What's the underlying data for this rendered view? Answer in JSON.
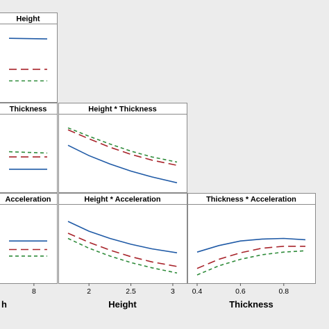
{
  "chart_data": [
    {
      "type": "line",
      "title": "Height",
      "row": 0,
      "col": 0,
      "x": [
        6.5,
        8.8
      ],
      "ylim": [
        0,
        1
      ],
      "series": [
        {
          "color": "#1f5aa6",
          "dash": "solid",
          "values": [
            0.88,
            0.87
          ]
        },
        {
          "color": "#a8232a",
          "dash": "long",
          "values": [
            0.4,
            0.4
          ]
        },
        {
          "color": "#2e8b3a",
          "dash": "short",
          "values": [
            0.22,
            0.22
          ]
        }
      ]
    },
    {
      "type": "line",
      "title": "Thickness",
      "row": 1,
      "col": 0,
      "x": [
        6.5,
        8.8
      ],
      "ylim": [
        0,
        1
      ],
      "series": [
        {
          "color": "#1f5aa6",
          "dash": "solid",
          "values": [
            0.25,
            0.25
          ]
        },
        {
          "color": "#a8232a",
          "dash": "long",
          "values": [
            0.44,
            0.44
          ]
        },
        {
          "color": "#2e8b3a",
          "dash": "short",
          "values": [
            0.52,
            0.5
          ]
        }
      ]
    },
    {
      "type": "line",
      "title": "Height * Thickness",
      "row": 1,
      "col": 1,
      "x": [
        1.75,
        3.05
      ],
      "ylim": [
        0,
        1
      ],
      "series": [
        {
          "color": "#1f5aa6",
          "dash": "solid",
          "x": [
            1.75,
            2.0,
            2.25,
            2.5,
            2.75,
            3.05
          ],
          "values": [
            0.62,
            0.46,
            0.33,
            0.22,
            0.13,
            0.04
          ]
        },
        {
          "color": "#a8232a",
          "dash": "long",
          "x": [
            1.75,
            2.0,
            2.25,
            2.5,
            2.75,
            3.05
          ],
          "values": [
            0.86,
            0.72,
            0.59,
            0.48,
            0.39,
            0.31
          ]
        },
        {
          "color": "#2e8b3a",
          "dash": "short",
          "x": [
            1.75,
            2.0,
            2.25,
            2.5,
            2.75,
            3.05
          ],
          "values": [
            0.89,
            0.76,
            0.64,
            0.53,
            0.44,
            0.36
          ]
        }
      ]
    },
    {
      "type": "line",
      "title": "Acceleration",
      "row": 2,
      "col": 0,
      "x": [
        6.5,
        8.8
      ],
      "ylim": [
        0,
        1
      ],
      "xticks": [
        8
      ],
      "series": [
        {
          "color": "#1f5aa6",
          "dash": "solid",
          "values": [
            0.54,
            0.54
          ]
        },
        {
          "color": "#a8232a",
          "dash": "long",
          "values": [
            0.41,
            0.41
          ]
        },
        {
          "color": "#2e8b3a",
          "dash": "short",
          "values": [
            0.31,
            0.31
          ]
        }
      ]
    },
    {
      "type": "line",
      "title": "Height * Acceleration",
      "row": 2,
      "col": 1,
      "x": [
        1.75,
        3.05
      ],
      "ylim": [
        0,
        1
      ],
      "xticks": [
        2.0,
        2.5,
        3.0
      ],
      "xlabel": "Height",
      "series": [
        {
          "color": "#1f5aa6",
          "dash": "solid",
          "x": [
            1.75,
            2.0,
            2.25,
            2.5,
            2.75,
            3.05
          ],
          "values": [
            0.84,
            0.69,
            0.58,
            0.49,
            0.42,
            0.36
          ]
        },
        {
          "color": "#a8232a",
          "dash": "long",
          "x": [
            1.75,
            2.0,
            2.25,
            2.5,
            2.75,
            3.05
          ],
          "values": [
            0.66,
            0.52,
            0.4,
            0.3,
            0.22,
            0.15
          ]
        },
        {
          "color": "#2e8b3a",
          "dash": "short",
          "x": [
            1.75,
            2.0,
            2.25,
            2.5,
            2.75,
            3.05
          ],
          "values": [
            0.58,
            0.43,
            0.31,
            0.21,
            0.13,
            0.05
          ]
        }
      ]
    },
    {
      "type": "line",
      "title": "Thickness * Acceleration",
      "row": 2,
      "col": 2,
      "x": [
        0.4,
        0.9
      ],
      "ylim": [
        0,
        1
      ],
      "xticks": [
        0.4,
        0.6,
        0.8
      ],
      "xlabel": "Thickness",
      "series": [
        {
          "color": "#1f5aa6",
          "dash": "solid",
          "x": [
            0.4,
            0.5,
            0.6,
            0.7,
            0.8,
            0.9
          ],
          "values": [
            0.37,
            0.47,
            0.54,
            0.57,
            0.58,
            0.56
          ]
        },
        {
          "color": "#a8232a",
          "dash": "long",
          "x": [
            0.4,
            0.5,
            0.6,
            0.7,
            0.8,
            0.9
          ],
          "values": [
            0.12,
            0.26,
            0.36,
            0.43,
            0.46,
            0.46
          ]
        },
        {
          "color": "#2e8b3a",
          "dash": "short",
          "x": [
            0.4,
            0.5,
            0.6,
            0.7,
            0.8,
            0.9
          ],
          "values": [
            0.02,
            0.16,
            0.26,
            0.33,
            0.37,
            0.39
          ]
        }
      ]
    }
  ],
  "cropped_xlabel": "h"
}
